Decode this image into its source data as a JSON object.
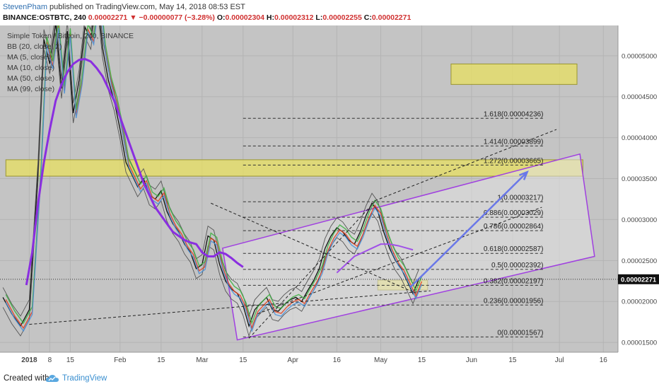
{
  "header": {
    "author": "StevenPham",
    "published_text": "published on TradingView.com, May 14, 2018 08:53 EST",
    "symbol": "BINANCE:OSTBTC, 240",
    "last_price": "0.00002271",
    "change": "▼ −0.00000077 (−3.28%)",
    "ohlc": [
      {
        "label": "O:",
        "value": "0.00002304"
      },
      {
        "label": "H:",
        "value": "0.00002312"
      },
      {
        "label": "L:",
        "value": "0.00002255"
      },
      {
        "label": "C:",
        "value": "0.00002271"
      }
    ]
  },
  "indicators": [
    "Simple Token / Bitcoin, 240, BINANCE",
    "BB (20, close, 2)",
    "MA (5, close)",
    "MA (10, close)",
    "MA (50, close)",
    "MA (99, close)"
  ],
  "chart_data": {
    "type": "line",
    "title": "",
    "x_axis": {
      "ticks": [
        "2018",
        "8",
        "15",
        "Feb",
        "15",
        "Mar",
        "15",
        "Apr",
        "16",
        "May",
        "15",
        "Jun",
        "15",
        "Jul",
        "16"
      ],
      "tick_days": [
        0,
        7,
        14,
        31,
        45,
        59,
        73,
        90,
        105,
        120,
        134,
        151,
        165,
        181,
        196
      ],
      "xlim_days": [
        -10,
        201
      ]
    },
    "y_axis": {
      "ticks": [
        "0.00001500",
        "0.00002000",
        "0.00002500",
        "0.00003000",
        "0.00003500",
        "0.00004000",
        "0.00004500",
        "0.00005000"
      ],
      "tick_values": [
        1.5e-05,
        2e-05,
        2.5e-05,
        3e-05,
        3.5e-05,
        4e-05,
        4.5e-05,
        5e-05
      ],
      "ylim": [
        1.38e-05,
        5.37e-05
      ],
      "current_price_label": "0.00002271",
      "current_price": 2.271e-05
    },
    "price_series": {
      "name": "OSTBTC close",
      "x_days": [
        -9,
        -6,
        -3,
        0,
        3,
        5,
        7,
        9,
        11,
        13,
        15,
        17,
        19,
        21,
        23,
        25,
        27,
        29,
        31,
        33,
        35,
        37,
        39,
        41,
        43,
        45,
        47,
        49,
        51,
        53,
        55,
        57,
        59,
        61,
        63,
        65,
        67,
        69,
        71,
        73,
        75,
        77,
        79,
        81,
        83,
        85,
        87,
        89,
        91,
        93,
        95,
        97,
        99,
        101,
        103,
        105,
        107,
        109,
        111,
        113,
        115,
        117,
        119,
        121,
        123,
        125,
        127,
        129,
        131,
        133
      ],
      "values": [
        2.05e-05,
        1.85e-05,
        1.7e-05,
        1.9e-05,
        3.6e-05,
        5.2e-05,
        4.9e-05,
        5.4e-05,
        4.6e-05,
        5.3e-05,
        4.3e-05,
        4.7e-05,
        5.35e-05,
        5.2e-05,
        5.8e-05,
        5.1e-05,
        4.7e-05,
        4.45e-05,
        4.1e-05,
        3.7e-05,
        3.55e-05,
        3.4e-05,
        3.5e-05,
        3.3e-05,
        3.25e-05,
        3.35e-05,
        3.1e-05,
        2.95e-05,
        2.85e-05,
        2.7e-05,
        2.6e-05,
        2.4e-05,
        2.45e-05,
        2.8e-05,
        2.75e-05,
        2.45e-05,
        2.25e-05,
        2.15e-05,
        2.1e-05,
        1.95e-05,
        1.7e-05,
        1.9e-05,
        1.98e-05,
        2.05e-05,
        1.9e-05,
        1.88e-05,
        1.96e-05,
        2.02e-05,
        2.05e-05,
        2e-05,
        2.13e-05,
        2.25e-05,
        2.4e-05,
        2.65e-05,
        2.8e-05,
        2.9e-05,
        2.85e-05,
        2.75e-05,
        2.7e-05,
        2.85e-05,
        3.05e-05,
        3.2e-05,
        3.1e-05,
        2.85e-05,
        2.65e-05,
        2.5e-05,
        2.4e-05,
        2.25e-05,
        2.095e-05,
        2.27e-05
      ]
    },
    "ma_series": [
      {
        "indicator": "MA (5, close)",
        "color": "#e04020"
      },
      {
        "indicator": "MA (10, close)",
        "color": "#3cb040"
      },
      {
        "indicator": "MA (50, close)",
        "color": "#4a90d8"
      },
      {
        "indicator": "MA (99, close)",
        "color": "#8a2ee0"
      }
    ],
    "ma99": {
      "x_days": [
        -1,
        1,
        3,
        5,
        7,
        9,
        11,
        13,
        15,
        17,
        19,
        21,
        23,
        25,
        27,
        29,
        31,
        33,
        35,
        37,
        39,
        41,
        43,
        45,
        47,
        49,
        51,
        53,
        55,
        57,
        59,
        61,
        63,
        65,
        67,
        69,
        71,
        73
      ],
      "values": [
        2.2e-05,
        2.6e-05,
        3.2e-05,
        3.7e-05,
        4.1e-05,
        4.45e-05,
        4.65e-05,
        4.8e-05,
        4.9e-05,
        4.95e-05,
        4.96e-05,
        4.93e-05,
        4.85e-05,
        4.75e-05,
        4.6e-05,
        4.45e-05,
        4.25e-05,
        4.05e-05,
        3.85e-05,
        3.65e-05,
        3.45e-05,
        3.3e-05,
        3.15e-05,
        3.05e-05,
        2.95e-05,
        2.85e-05,
        2.8e-05,
        2.75e-05,
        2.72e-05,
        2.7e-05,
        2.6e-05,
        2.55e-05,
        2.55e-05,
        2.6e-05,
        2.58e-05,
        2.53e-05,
        2.47e-05,
        2.42e-05
      ]
    },
    "ma50_recent": {
      "x_days": [
        105,
        108,
        111,
        114,
        117,
        120,
        123,
        126,
        129,
        131
      ],
      "values": [
        2.35e-05,
        2.45e-05,
        2.55e-05,
        2.6e-05,
        2.65e-05,
        2.7e-05,
        2.7e-05,
        2.68e-05,
        2.65e-05,
        2.63e-05
      ]
    },
    "fibonacci": [
      {
        "ratio": "0",
        "value": 1.567e-05,
        "label": "0(0.00001567)"
      },
      {
        "ratio": "0.236",
        "value": 1.956e-05,
        "label": "0.236(0.00001956)"
      },
      {
        "ratio": "0.382",
        "value": 2.197e-05,
        "label": "0.382(0.00002197)"
      },
      {
        "ratio": "0.5",
        "value": 2.392e-05,
        "label": "0.5(0.00002392)"
      },
      {
        "ratio": "0.618",
        "value": 2.587e-05,
        "label": "0.618(0.00002587)"
      },
      {
        "ratio": "0.786",
        "value": 2.864e-05,
        "label": "0.786(0.00002864)"
      },
      {
        "ratio": "0.886",
        "value": 3.029e-05,
        "label": "0.886(0.00003029)"
      },
      {
        "ratio": "1",
        "value": 3.217e-05,
        "label": "1(0.00003217)"
      },
      {
        "ratio": "1.272",
        "value": 3.665e-05,
        "label": "1.272(0.00003665)"
      },
      {
        "ratio": "1.414",
        "value": 3.899e-05,
        "label": "1.414(0.00003899)"
      },
      {
        "ratio": "1.618",
        "value": 4.236e-05,
        "label": "1.618(0.00004236)"
      }
    ],
    "fib_x_start_days": 73,
    "fib_x_end_days": 176,
    "zones": [
      {
        "name": "resistance-zone",
        "x0": -8,
        "x1": 189,
        "y0": 3.53e-05,
        "y1": 3.73e-05,
        "color": "#e8e060"
      },
      {
        "name": "target-zone",
        "x0": 144,
        "x1": 187,
        "y0": 4.65e-05,
        "y1": 4.9e-05,
        "color": "#e8e060"
      },
      {
        "name": "support-zone",
        "x0": 119,
        "x1": 136,
        "y0": 2.14e-05,
        "y1": 2.26e-05,
        "color": "#e8e060"
      }
    ],
    "channel": {
      "corners": [
        [
          66,
          2.65e-05
        ],
        [
          188,
          3.8e-05
        ],
        [
          193,
          2.55e-05
        ],
        [
          71,
          1.53e-05
        ]
      ],
      "color": "#a040e0"
    },
    "trendlines": [
      {
        "name": "long-support",
        "from": [
          0,
          1.72e-05
        ],
        "to": [
          137,
          2.13e-05
        ]
      },
      {
        "name": "upper-dashed",
        "from": [
          118,
          3.23e-05
        ],
        "to": [
          180,
          4.1e-05
        ]
      },
      {
        "name": "wedge-top",
        "from": [
          62,
          3.2e-05
        ],
        "to": [
          132,
          2.1e-05
        ]
      },
      {
        "name": "wedge-bottom",
        "from": [
          75,
          1.55e-05
        ],
        "to": [
          118,
          3.22e-05
        ]
      },
      {
        "name": "mid-channel",
        "from": [
          78,
          1.85e-05
        ],
        "to": [
          175,
          3.15e-05
        ]
      }
    ],
    "projection_arrow": {
      "from": [
        130,
        2.17e-05
      ],
      "to": [
        170,
        3.58e-05
      ],
      "color": "#6a78e8"
    }
  },
  "footer": {
    "created_with": "Created with",
    "brand": "TradingView"
  }
}
